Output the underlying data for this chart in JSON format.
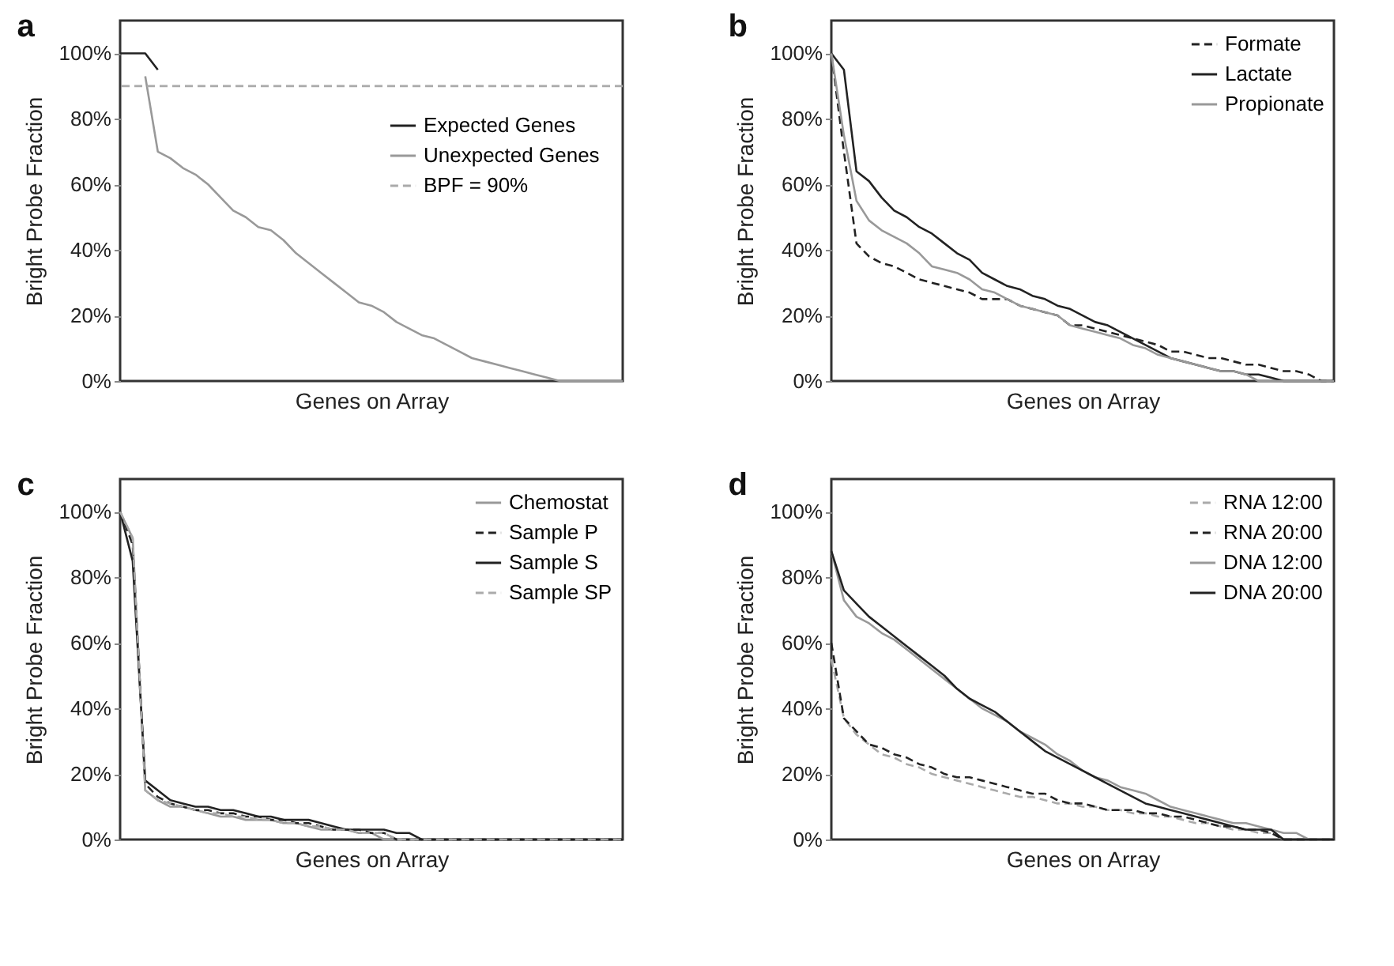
{
  "chart_data": [
    {
      "type": "line",
      "title": "a",
      "xlabel": "Genes on Array",
      "ylabel": "Bright Probe Fraction",
      "categories": [
        null,
        null,
        null,
        null,
        null,
        null,
        null,
        null,
        null,
        null,
        null,
        null,
        null,
        null,
        null,
        null,
        null,
        null,
        null,
        null,
        null,
        null,
        null,
        null,
        null,
        null,
        null,
        null,
        null,
        null,
        null,
        null,
        null,
        null,
        null,
        null,
        null,
        null,
        null,
        null,
        null
      ],
      "ylim": [
        0,
        110
      ],
      "yticks": [
        {
          "value": 0,
          "label": "0%"
        },
        {
          "value": 20,
          "label": "20%"
        },
        {
          "value": 40,
          "label": "40%"
        },
        {
          "value": 60,
          "label": "60%"
        },
        {
          "value": 80,
          "label": "80%"
        },
        {
          "value": 100,
          "label": "100%"
        }
      ],
      "tick_labels": "y",
      "legend": "top right",
      "grid": false,
      "marker": "none",
      "ref_lines": [
        {
          "axis": "y",
          "value": 90,
          "label": "BPF = 90%",
          "color": "#aaaaaa",
          "line_style": "dashed"
        }
      ],
      "series": [
        {
          "name": "Expected Genes",
          "color": "#222222",
          "line_style": "solid",
          "values": [
            100,
            100,
            100,
            95,
            null,
            null,
            null,
            null,
            null,
            null,
            null,
            null,
            null,
            null,
            null,
            null,
            null,
            null,
            null,
            null,
            null,
            null,
            null,
            null,
            null,
            null,
            null,
            null,
            null,
            null,
            null,
            null,
            null,
            null,
            null,
            null,
            null,
            null,
            null,
            null,
            null
          ]
        },
        {
          "name": "Unexpected Genes",
          "color": "#999999",
          "line_style": "solid",
          "values": [
            null,
            null,
            93,
            70,
            68,
            65,
            63,
            60,
            56,
            52,
            50,
            47,
            46,
            43,
            39,
            36,
            33,
            30,
            27,
            24,
            23,
            21,
            18,
            16,
            14,
            13,
            11,
            9,
            7,
            6,
            5,
            4,
            3,
            2,
            1,
            0,
            0,
            0,
            0,
            0,
            0
          ]
        }
      ]
    },
    {
      "type": "line",
      "title": "b",
      "xlabel": "Genes on Array",
      "ylabel": "Bright Probe Fraction",
      "categories": [
        null,
        null,
        null,
        null,
        null,
        null,
        null,
        null,
        null,
        null,
        null,
        null,
        null,
        null,
        null,
        null,
        null,
        null,
        null,
        null,
        null,
        null,
        null,
        null,
        null,
        null,
        null,
        null,
        null,
        null,
        null,
        null,
        null,
        null,
        null,
        null,
        null,
        null,
        null,
        null,
        null
      ],
      "ylim": [
        0,
        110
      ],
      "yticks": [
        {
          "value": 0,
          "label": "0%"
        },
        {
          "value": 20,
          "label": "20%"
        },
        {
          "value": 40,
          "label": "40%"
        },
        {
          "value": 60,
          "label": "60%"
        },
        {
          "value": 80,
          "label": "80%"
        },
        {
          "value": 100,
          "label": "100%"
        }
      ],
      "tick_labels": "y",
      "legend": "top right",
      "grid": false,
      "marker": "none",
      "series": [
        {
          "name": "Formate",
          "color": "#222222",
          "line_style": "dashed",
          "values": [
            100,
            70,
            42,
            38,
            36,
            35,
            33,
            31,
            30,
            29,
            28,
            27,
            25,
            25,
            25,
            23,
            22,
            21,
            20,
            17,
            17,
            16,
            15,
            14,
            13,
            12,
            11,
            9,
            9,
            8,
            7,
            7,
            6,
            5,
            5,
            4,
            3,
            3,
            2,
            0,
            0
          ]
        },
        {
          "name": "Lactate",
          "color": "#222222",
          "line_style": "solid",
          "values": [
            100,
            95,
            64,
            61,
            56,
            52,
            50,
            47,
            45,
            42,
            39,
            37,
            33,
            31,
            29,
            28,
            26,
            25,
            23,
            22,
            20,
            18,
            17,
            15,
            13,
            11,
            9,
            7,
            6,
            5,
            4,
            3,
            3,
            2,
            2,
            1,
            0,
            0,
            0,
            0,
            0
          ]
        },
        {
          "name": "Propionate",
          "color": "#999999",
          "line_style": "solid",
          "values": [
            100,
            75,
            55,
            49,
            46,
            44,
            42,
            39,
            35,
            34,
            33,
            31,
            28,
            27,
            25,
            23,
            22,
            21,
            20,
            17,
            16,
            15,
            14,
            13,
            11,
            10,
            8,
            7,
            6,
            5,
            4,
            3,
            3,
            2,
            0,
            0,
            0,
            0,
            0,
            0,
            0
          ]
        }
      ]
    },
    {
      "type": "line",
      "title": "c",
      "xlabel": "Genes on Array",
      "ylabel": "Bright Probe Fraction",
      "categories": [
        null,
        null,
        null,
        null,
        null,
        null,
        null,
        null,
        null,
        null,
        null,
        null,
        null,
        null,
        null,
        null,
        null,
        null,
        null,
        null,
        null,
        null,
        null,
        null,
        null,
        null,
        null,
        null,
        null,
        null,
        null,
        null,
        null,
        null,
        null,
        null,
        null,
        null,
        null,
        null,
        null
      ],
      "ylim": [
        0,
        110
      ],
      "yticks": [
        {
          "value": 0,
          "label": "0%"
        },
        {
          "value": 20,
          "label": "20%"
        },
        {
          "value": 40,
          "label": "40%"
        },
        {
          "value": 60,
          "label": "60%"
        },
        {
          "value": 80,
          "label": "80%"
        },
        {
          "value": 100,
          "label": "100%"
        }
      ],
      "tick_labels": "y",
      "legend": "top right",
      "grid": false,
      "marker": "none",
      "series": [
        {
          "name": "Chemostat",
          "color": "#999999",
          "line_style": "solid",
          "values": [
            100,
            92,
            15,
            12,
            10,
            10,
            9,
            8,
            7,
            7,
            6,
            6,
            6,
            5,
            5,
            4,
            3,
            3,
            3,
            2,
            2,
            0,
            0,
            0,
            0,
            0,
            0,
            0,
            0,
            0,
            0,
            0,
            0,
            0,
            0,
            0,
            0,
            0,
            0,
            0,
            0
          ]
        },
        {
          "name": "Sample P",
          "color": "#222222",
          "line_style": "dashed",
          "values": [
            100,
            90,
            17,
            13,
            11,
            10,
            9,
            9,
            8,
            8,
            7,
            7,
            6,
            6,
            5,
            5,
            4,
            3,
            3,
            3,
            2,
            2,
            0,
            0,
            0,
            0,
            0,
            0,
            0,
            0,
            0,
            0,
            0,
            0,
            0,
            0,
            0,
            0,
            0,
            0,
            0
          ]
        },
        {
          "name": "Sample S",
          "color": "#222222",
          "line_style": "solid",
          "values": [
            100,
            85,
            18,
            15,
            12,
            11,
            10,
            10,
            9,
            9,
            8,
            7,
            7,
            6,
            6,
            6,
            5,
            4,
            3,
            3,
            3,
            3,
            2,
            2,
            0,
            0,
            0,
            0,
            0,
            0,
            0,
            0,
            0,
            0,
            0,
            0,
            0,
            0,
            0,
            0,
            0
          ]
        },
        {
          "name": "Sample SP",
          "color": "#aaaaaa",
          "line_style": "dashed",
          "values": [
            100,
            92,
            15,
            12,
            11,
            10,
            9,
            8,
            8,
            7,
            7,
            6,
            6,
            5,
            5,
            4,
            4,
            3,
            3,
            2,
            2,
            2,
            0,
            0,
            0,
            0,
            0,
            0,
            0,
            0,
            0,
            0,
            0,
            0,
            0,
            0,
            0,
            0,
            0,
            0,
            0
          ]
        }
      ]
    },
    {
      "type": "line",
      "title": "d",
      "xlabel": "Genes on Array",
      "ylabel": "Bright Probe Fraction",
      "categories": [
        null,
        null,
        null,
        null,
        null,
        null,
        null,
        null,
        null,
        null,
        null,
        null,
        null,
        null,
        null,
        null,
        null,
        null,
        null,
        null,
        null,
        null,
        null,
        null,
        null,
        null,
        null,
        null,
        null,
        null,
        null,
        null,
        null,
        null,
        null,
        null,
        null,
        null,
        null,
        null,
        null
      ],
      "ylim": [
        0,
        110
      ],
      "yticks": [
        {
          "value": 0,
          "label": "0%"
        },
        {
          "value": 20,
          "label": "20%"
        },
        {
          "value": 40,
          "label": "40%"
        },
        {
          "value": 60,
          "label": "60%"
        },
        {
          "value": 80,
          "label": "80%"
        },
        {
          "value": 100,
          "label": "100%"
        }
      ],
      "tick_labels": "y",
      "legend": "top right",
      "grid": false,
      "marker": "none",
      "series": [
        {
          "name": "RNA 12:00",
          "color": "#aaaaaa",
          "line_style": "dashed",
          "values": [
            55,
            37,
            32,
            29,
            26,
            25,
            23,
            22,
            20,
            19,
            18,
            17,
            16,
            15,
            14,
            13,
            13,
            12,
            11,
            11,
            10,
            10,
            9,
            9,
            8,
            8,
            7,
            7,
            6,
            5,
            5,
            4,
            3,
            3,
            2,
            2,
            0,
            0,
            0,
            0,
            0
          ]
        },
        {
          "name": "RNA 20:00",
          "color": "#222222",
          "line_style": "dashed",
          "values": [
            60,
            37,
            33,
            29,
            28,
            26,
            25,
            23,
            22,
            20,
            19,
            19,
            18,
            17,
            16,
            15,
            14,
            14,
            12,
            11,
            11,
            10,
            9,
            9,
            9,
            8,
            8,
            7,
            7,
            6,
            5,
            4,
            4,
            3,
            3,
            2,
            0,
            0,
            0,
            0,
            0
          ]
        },
        {
          "name": "DNA 12:00",
          "color": "#999999",
          "line_style": "solid",
          "values": [
            88,
            73,
            68,
            66,
            63,
            61,
            58,
            55,
            52,
            49,
            46,
            43,
            40,
            38,
            36,
            33,
            31,
            29,
            26,
            24,
            21,
            19,
            18,
            16,
            15,
            14,
            12,
            10,
            9,
            8,
            7,
            6,
            5,
            5,
            4,
            3,
            2,
            2,
            0,
            0,
            0
          ]
        },
        {
          "name": "DNA 20:00",
          "color": "#222222",
          "line_style": "solid",
          "values": [
            88,
            76,
            72,
            68,
            65,
            62,
            59,
            56,
            53,
            50,
            46,
            43,
            41,
            39,
            36,
            33,
            30,
            27,
            25,
            23,
            21,
            19,
            17,
            15,
            13,
            11,
            10,
            9,
            8,
            7,
            6,
            5,
            4,
            3,
            3,
            3,
            0,
            0,
            0,
            0,
            0
          ]
        }
      ]
    }
  ]
}
